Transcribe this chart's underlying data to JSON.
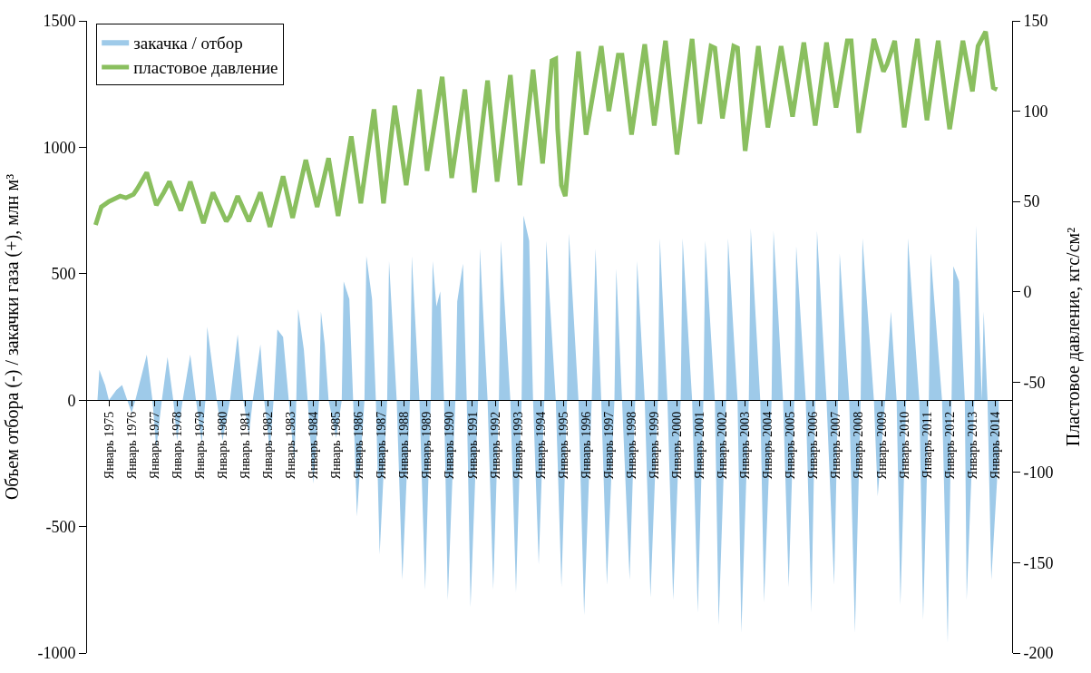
{
  "chart_data": {
    "type": "area",
    "ylabel": "Объем отбора (-) / закачки газа (+), млн м³",
    "y2label": "Пластовое давление, кгс/см²",
    "xlim": [
      "1974-01-15",
      "2014-10-01"
    ],
    "xticks": [
      {
        "value": "1975-01-01",
        "label": "Январь 1975"
      },
      {
        "value": "1976-01-01",
        "label": "Январь 1976"
      },
      {
        "value": "1977-01-01",
        "label": "Январь 1977"
      },
      {
        "value": "1978-01-01",
        "label": "Январь 1978"
      },
      {
        "value": "1979-01-01",
        "label": "Январь 1979"
      },
      {
        "value": "1980-01-01",
        "label": "Январь 1980"
      },
      {
        "value": "1981-01-01",
        "label": "Январь 1981"
      },
      {
        "value": "1982-01-01",
        "label": "Январь 1982"
      },
      {
        "value": "1983-01-01",
        "label": "Январь 1983"
      },
      {
        "value": "1984-01-01",
        "label": "Январь 1984"
      },
      {
        "value": "1985-01-01",
        "label": "Январь 1985"
      },
      {
        "value": "1986-01-01",
        "label": "Январь 1986"
      },
      {
        "value": "1987-01-01",
        "label": "Январь 1987"
      },
      {
        "value": "1988-01-01",
        "label": "Январь 1988"
      },
      {
        "value": "1989-01-01",
        "label": "Январь 1989"
      },
      {
        "value": "1990-01-01",
        "label": "Январь 1990"
      },
      {
        "value": "1991-01-01",
        "label": "Январь 1991"
      },
      {
        "value": "1992-01-01",
        "label": "Январь 1992"
      },
      {
        "value": "1993-01-01",
        "label": "Январь 1993"
      },
      {
        "value": "1994-01-01",
        "label": "Январь 1994"
      },
      {
        "value": "1995-01-01",
        "label": "Январь 1995"
      },
      {
        "value": "1996-01-01",
        "label": "Январь 1996"
      },
      {
        "value": "1997-01-01",
        "label": "Январь 1997"
      },
      {
        "value": "1998-01-01",
        "label": "Январь 1998"
      },
      {
        "value": "1999-01-01",
        "label": "Январь 1999"
      },
      {
        "value": "2000-01-01",
        "label": "Январь 2000"
      },
      {
        "value": "2001-01-01",
        "label": "Январь 2001"
      },
      {
        "value": "2002-01-01",
        "label": "Январь 2002"
      },
      {
        "value": "2003-01-01",
        "label": "Январь 2003"
      },
      {
        "value": "2004-01-01",
        "label": "Январь 2004"
      },
      {
        "value": "2005-01-01",
        "label": "Январь 2005"
      },
      {
        "value": "2006-01-01",
        "label": "Январь 2006"
      },
      {
        "value": "2007-01-01",
        "label": "Январь 2007"
      },
      {
        "value": "2008-01-01",
        "label": "Январь 2008"
      },
      {
        "value": "2009-01-01",
        "label": "Январь 2009"
      },
      {
        "value": "2010-01-01",
        "label": "Январь 2010"
      },
      {
        "value": "2011-01-01",
        "label": "Январь 2011"
      },
      {
        "value": "2012-01-01",
        "label": "Январь 2012"
      },
      {
        "value": "2013-01-01",
        "label": "Январь 2013"
      },
      {
        "value": "2014-01-01",
        "label": "Январь 2014"
      }
    ],
    "ylim": [
      -1000,
      1500
    ],
    "yticks": [
      -1000,
      -500,
      0,
      500,
      1000,
      1500
    ],
    "y2lim": [
      -200,
      150
    ],
    "y2ticks": [
      -200,
      -150,
      -100,
      -50,
      0,
      50,
      100,
      150
    ],
    "legend": "top left",
    "series": [
      {
        "name": "закачка / отбор",
        "color": "#9ecae9",
        "x": [
          "1974-07",
          "1974-08",
          "1974-11",
          "1975-01",
          "1975-05",
          "1975-08",
          "1976-01",
          "1976-03",
          "1976-09",
          "1976-12",
          "1977-02",
          "1977-05",
          "1977-08",
          "1977-11",
          "1978-01",
          "1978-04",
          "1978-08",
          "1978-11",
          "1979-02",
          "1979-04",
          "1979-05",
          "1979-10",
          "1980-01",
          "1980-05",
          "1980-09",
          "1980-12",
          "1981-03",
          "1981-05",
          "1981-09",
          "1981-11",
          "1982-02",
          "1982-04",
          "1982-06",
          "1982-09",
          "1982-12",
          "1983-03",
          "1983-04",
          "1983-05",
          "1983-08",
          "1983-10",
          "1984-01",
          "1984-04",
          "1984-05",
          "1984-07",
          "1984-09",
          "1985-01",
          "1985-04",
          "1985-05",
          "1985-08",
          "1985-10",
          "1985-12",
          "1986-04",
          "1986-05",
          "1986-08",
          "1986-10",
          "1986-12",
          "1987-04",
          "1987-05",
          "1987-09",
          "1987-12",
          "1988-04",
          "1988-05",
          "1988-09",
          "1988-12",
          "1989-03",
          "1989-04",
          "1989-06",
          "1989-08",
          "1989-10",
          "1989-12",
          "1990-04",
          "1990-05",
          "1990-08",
          "1990-10",
          "1990-12",
          "1991-04",
          "1991-05",
          "1991-09",
          "1991-12",
          "1992-03",
          "1992-04",
          "1992-09",
          "1992-12",
          "1993-03",
          "1993-04",
          "1993-07",
          "1993-09",
          "1993-12",
          "1994-03",
          "1994-04",
          "1994-09",
          "1994-12",
          "1995-03",
          "1995-04",
          "1995-09",
          "1995-12",
          "1996-04",
          "1996-06",
          "1996-09",
          "1996-12",
          "1997-04",
          "1997-05",
          "1997-08",
          "1997-12",
          "1998-03",
          "1998-04",
          "1998-08",
          "1998-11",
          "1999-03",
          "1999-04",
          "1999-08",
          "1999-11",
          "2000-03",
          "2000-04",
          "2000-09",
          "2000-12",
          "2001-03",
          "2001-04",
          "2001-09",
          "2001-11",
          "2002-03",
          "2002-04",
          "2002-09",
          "2002-11",
          "2003-03",
          "2003-04",
          "2003-09",
          "2003-11",
          "2004-03",
          "2004-04",
          "2004-09",
          "2004-12",
          "2005-03",
          "2005-04",
          "2005-09",
          "2005-12",
          "2006-02",
          "2006-03",
          "2006-08",
          "2006-12",
          "2007-02",
          "2007-03",
          "2007-08",
          "2007-11",
          "2008-02",
          "2008-03",
          "2008-09",
          "2008-11",
          "2009-03",
          "2009-06",
          "2009-09",
          "2009-11",
          "2010-02",
          "2010-03",
          "2010-09",
          "2010-11",
          "2011-02",
          "2011-03",
          "2011-09",
          "2011-12",
          "2012-02",
          "2012-03",
          "2012-06",
          "2012-09",
          "2012-10",
          "2013-02",
          "2013-03",
          "2013-06",
          "2013-07",
          "2013-09",
          "2013-11",
          "2014-03"
        ],
        "values": [
          0,
          120,
          60,
          0,
          40,
          60,
          -50,
          0,
          180,
          0,
          -190,
          0,
          170,
          0,
          -160,
          0,
          180,
          0,
          -170,
          0,
          290,
          0,
          -160,
          0,
          260,
          0,
          -140,
          0,
          220,
          0,
          -200,
          0,
          280,
          250,
          0,
          -250,
          0,
          360,
          200,
          0,
          -330,
          0,
          350,
          220,
          0,
          -150,
          0,
          470,
          400,
          0,
          -460,
          0,
          570,
          400,
          0,
          -610,
          0,
          550,
          0,
          -710,
          0,
          570,
          0,
          -750,
          0,
          550,
          370,
          430,
          0,
          -790,
          0,
          390,
          540,
          0,
          -820,
          0,
          600,
          0,
          -750,
          0,
          630,
          0,
          -760,
          0,
          730,
          630,
          0,
          -650,
          0,
          630,
          0,
          -740,
          0,
          660,
          0,
          -850,
          0,
          600,
          0,
          -730,
          0,
          520,
          0,
          -710,
          0,
          550,
          0,
          -780,
          0,
          640,
          0,
          -790,
          0,
          640,
          0,
          -840,
          0,
          630,
          0,
          -890,
          0,
          640,
          0,
          -920,
          0,
          680,
          0,
          -800,
          0,
          670,
          0,
          -740,
          0,
          610,
          0,
          -840,
          0,
          670,
          0,
          -730,
          0,
          580,
          0,
          -920,
          0,
          640,
          0,
          -380,
          0,
          350,
          0,
          -810,
          0,
          640,
          0,
          -870,
          0,
          580,
          0,
          -960,
          0,
          530,
          470,
          0,
          -790,
          0,
          690,
          0,
          350,
          0,
          -710,
          -200
        ]
      },
      {
        "name": "пластовое давление",
        "type": "line",
        "axis": "y2",
        "color": "#8abf5f",
        "x": [
          "1974-06",
          "1974-09",
          "1975-01",
          "1975-07",
          "1975-10",
          "1976-02",
          "1976-04",
          "1976-09",
          "1977-02",
          "1977-06",
          "1977-09",
          "1978-03",
          "1978-08",
          "1979-03",
          "1979-08",
          "1980-03",
          "1980-05",
          "1980-09",
          "1981-03",
          "1981-09",
          "1982-02",
          "1982-09",
          "1983-02",
          "1983-09",
          "1984-03",
          "1984-09",
          "1985-02",
          "1985-09",
          "1986-02",
          "1986-09",
          "1987-02",
          "1987-08",
          "1988-02",
          "1988-09",
          "1989-01",
          "1989-09",
          "1990-02",
          "1990-09",
          "1991-02",
          "1991-09",
          "1992-02",
          "1992-09",
          "1993-02",
          "1993-09",
          "1994-02",
          "1994-07",
          "1994-09",
          "1994-10",
          "1994-12",
          "1995-02",
          "1995-09",
          "1996-01",
          "1996-09",
          "1997-01",
          "1997-06",
          "1997-08",
          "1998-01",
          "1998-08",
          "1999-01",
          "1999-07",
          "2000-01",
          "2000-09",
          "2001-01",
          "2001-07",
          "2001-09",
          "2002-01",
          "2002-07",
          "2002-09",
          "2003-01",
          "2003-08",
          "2004-01",
          "2004-08",
          "2005-02",
          "2005-08",
          "2006-02",
          "2006-08",
          "2007-01",
          "2007-07",
          "2007-09",
          "2008-01",
          "2008-09",
          "2009-02",
          "2009-04",
          "2009-08",
          "2010-01",
          "2010-08",
          "2011-01",
          "2011-07",
          "2012-01",
          "2012-08",
          "2013-01",
          "2013-04",
          "2013-08",
          "2013-12",
          "2014-02"
        ],
        "values": [
          37,
          47,
          50,
          53,
          52,
          54,
          57,
          66,
          48,
          55,
          61,
          45,
          61,
          38,
          55,
          39,
          42,
          53,
          39,
          55,
          36,
          64,
          41,
          73,
          47,
          74,
          42,
          86,
          49,
          101,
          49,
          103,
          59,
          112,
          67,
          119,
          63,
          112,
          55,
          117,
          61,
          120,
          59,
          123,
          71,
          128,
          129,
          90,
          59,
          53,
          133,
          87,
          136,
          100,
          131,
          131,
          87,
          137,
          92,
          139,
          76,
          140,
          93,
          136,
          135,
          96,
          136,
          135,
          78,
          136,
          91,
          136,
          97,
          138,
          92,
          138,
          102,
          139,
          139,
          88,
          140,
          122,
          126,
          139,
          91,
          140,
          95,
          139,
          90,
          139,
          111,
          136,
          144,
          113,
          112
        ]
      }
    ]
  }
}
